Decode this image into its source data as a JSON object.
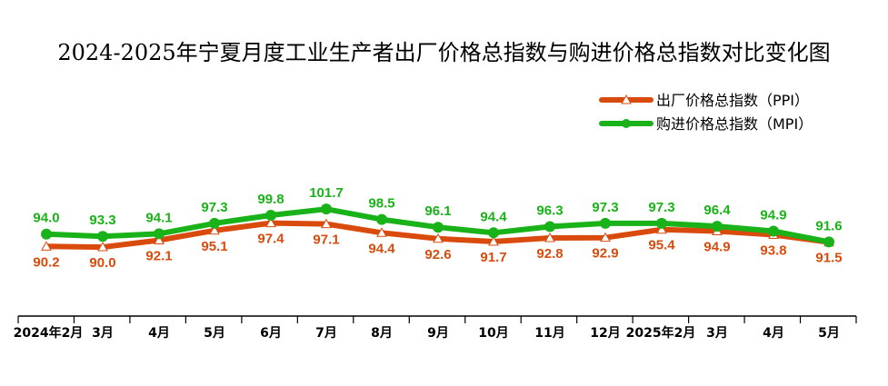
{
  "chart_data": {
    "type": "line",
    "title": "2024-2025年宁夏月度工业生产者出厂价格总指数与购进价格总指数对比变化图",
    "categories": [
      "2024年2月",
      "3月",
      "4月",
      "5月",
      "6月",
      "7月",
      "8月",
      "9月",
      "10月",
      "11月",
      "12月",
      "2025年2月",
      "3月",
      "4月",
      "5月"
    ],
    "series": [
      {
        "name": "出厂价格总指数（PPI）",
        "color": "#d94b0c",
        "marker": "triangle",
        "values": [
          90.2,
          90.0,
          92.1,
          95.1,
          97.4,
          97.1,
          94.4,
          92.6,
          91.7,
          92.8,
          92.9,
          95.4,
          94.9,
          93.8,
          91.5
        ]
      },
      {
        "name": "购进价格总指数（MPI）",
        "color": "#19b219",
        "marker": "circle",
        "values": [
          94.0,
          93.3,
          94.1,
          97.3,
          99.8,
          101.7,
          98.5,
          96.1,
          94.4,
          96.3,
          97.3,
          97.3,
          96.4,
          94.9,
          91.6
        ]
      }
    ],
    "legend_position": "top-right",
    "grid": false
  }
}
